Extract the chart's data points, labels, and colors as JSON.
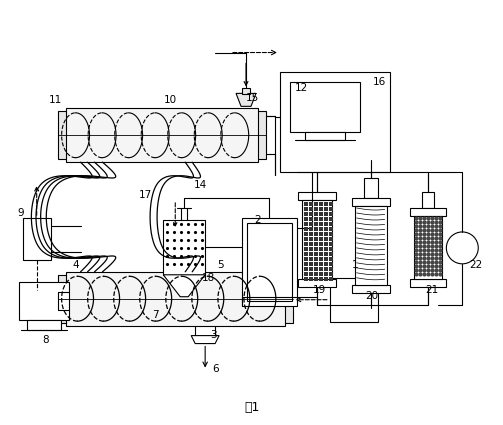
{
  "title": "图1",
  "bg_color": "#ffffff",
  "lc": "#000000",
  "fig_width": 5.03,
  "fig_height": 4.25,
  "dpi": 100
}
